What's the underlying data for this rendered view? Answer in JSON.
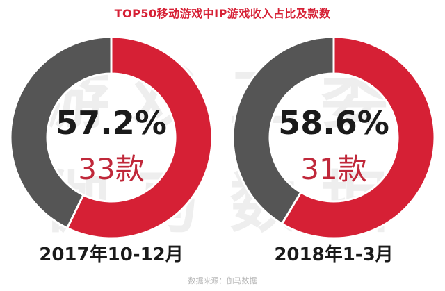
{
  "title": "TOP50移动游戏中IP游戏收入占比及款数",
  "watermark": [
    "游",
    "戏",
    "工",
    "委",
    "伽",
    "马",
    "数",
    "据"
  ],
  "colors": {
    "primary": "#d62035",
    "secondary": "#555555",
    "title": "#d62035",
    "count": "#c0283a"
  },
  "chart_data": [
    {
      "type": "pie",
      "period": "2017年10-12月",
      "value_label": "57.2%",
      "count_label": "33款",
      "slices": [
        {
          "value": 57.2,
          "color": "#d62035"
        },
        {
          "value": 42.8,
          "color": "#555555"
        }
      ]
    },
    {
      "type": "pie",
      "period": "2018年1-3月",
      "value_label": "58.6%",
      "count_label": "31款",
      "slices": [
        {
          "value": 58.6,
          "color": "#d62035"
        },
        {
          "value": 41.4,
          "color": "#555555"
        }
      ]
    }
  ],
  "source": "数据来源：伽马数据"
}
